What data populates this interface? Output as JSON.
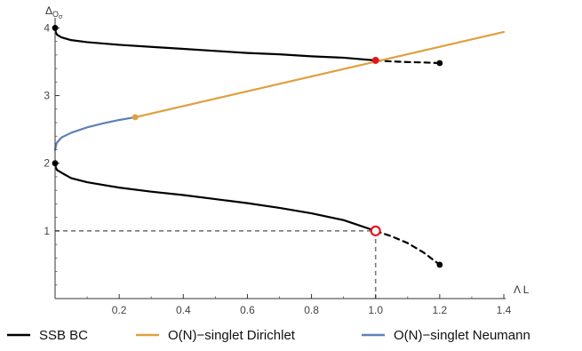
{
  "chart_data": {
    "type": "line",
    "xlabel": "Λ L",
    "ylabel": "Δ",
    "ylabel_sub": "O",
    "ylabel_subsub": "σ",
    "xlim": [
      0,
      1.4
    ],
    "ylim": [
      0,
      4.15
    ],
    "xticks": [
      0.2,
      0.4,
      0.6,
      0.8,
      1.0,
      1.2,
      1.4
    ],
    "xtick_labels": [
      "0.2",
      "0.4",
      "0.6",
      "0.8",
      "1.0",
      "1.2",
      "1.4"
    ],
    "yticks": [
      1,
      2,
      3,
      4
    ],
    "ytick_labels": [
      "1",
      "2",
      "3",
      "4"
    ],
    "grid": false,
    "legend_position": "bottom",
    "colors": {
      "ssb": "#000000",
      "dirichlet": "#E09F3E",
      "neumann": "#5E81B5",
      "special_point": "#E8141C",
      "guide": "#777777"
    },
    "series": [
      {
        "name": "SSB BC",
        "key": "ssb",
        "curves": [
          {
            "style": "solid",
            "points": [
              [
                0,
                4.0
              ],
              [
                0.002,
                3.94
              ],
              [
                0.006,
                3.9
              ],
              [
                0.02,
                3.86
              ],
              [
                0.05,
                3.82
              ],
              [
                0.1,
                3.79
              ],
              [
                0.2,
                3.75
              ],
              [
                0.3,
                3.72
              ],
              [
                0.4,
                3.69
              ],
              [
                0.5,
                3.66
              ],
              [
                0.6,
                3.63
              ],
              [
                0.7,
                3.61
              ],
              [
                0.8,
                3.58
              ],
              [
                0.9,
                3.56
              ],
              [
                1.0,
                3.52
              ]
            ]
          },
          {
            "style": "dashed",
            "points": [
              [
                1.0,
                3.52
              ],
              [
                1.05,
                3.505
              ],
              [
                1.1,
                3.495
              ],
              [
                1.15,
                3.49
              ],
              [
                1.2,
                3.48
              ]
            ]
          },
          {
            "style": "solid",
            "points": [
              [
                0,
                2.0
              ],
              [
                0.002,
                1.94
              ],
              [
                0.006,
                1.9
              ],
              [
                0.02,
                1.86
              ],
              [
                0.05,
                1.78
              ],
              [
                0.1,
                1.72
              ],
              [
                0.2,
                1.64
              ],
              [
                0.3,
                1.58
              ],
              [
                0.4,
                1.53
              ],
              [
                0.5,
                1.47
              ],
              [
                0.6,
                1.41
              ],
              [
                0.7,
                1.34
              ],
              [
                0.8,
                1.26
              ],
              [
                0.9,
                1.16
              ],
              [
                1.0,
                1.0
              ]
            ]
          },
          {
            "style": "dashed",
            "points": [
              [
                1.0,
                1.0
              ],
              [
                1.05,
                0.92
              ],
              [
                1.1,
                0.82
              ],
              [
                1.15,
                0.68
              ],
              [
                1.2,
                0.5
              ]
            ]
          }
        ],
        "markers": [
          [
            0,
            4.0
          ],
          [
            0,
            2.0
          ],
          [
            1.2,
            3.48
          ],
          [
            1.2,
            0.5
          ]
        ]
      },
      {
        "name": "O(N)−singlet Dirichlet",
        "key": "dirichlet",
        "curves": [
          {
            "style": "solid",
            "points": [
              [
                0.25,
                2.68
              ],
              [
                1.4,
                3.94
              ]
            ]
          }
        ],
        "markers": [
          [
            0.25,
            2.68
          ]
        ]
      },
      {
        "name": "O(N)−singlet Neumann",
        "key": "neumann",
        "curves": [
          {
            "style": "solid",
            "points": [
              [
                0,
                2.2
              ],
              [
                0.005,
                2.3
              ],
              [
                0.02,
                2.38
              ],
              [
                0.05,
                2.45
              ],
              [
                0.1,
                2.53
              ],
              [
                0.15,
                2.59
              ],
              [
                0.2,
                2.64
              ],
              [
                0.25,
                2.68
              ]
            ]
          }
        ],
        "markers": []
      }
    ],
    "special_points": [
      {
        "x": 1.0,
        "y": 3.52,
        "style": "filled"
      },
      {
        "x": 1.0,
        "y": 1.0,
        "style": "open"
      }
    ],
    "guide_lines": [
      {
        "from": [
          0,
          1.0
        ],
        "to": [
          1.0,
          1.0
        ]
      },
      {
        "from": [
          1.0,
          1.0
        ],
        "to": [
          1.0,
          0
        ]
      }
    ]
  }
}
